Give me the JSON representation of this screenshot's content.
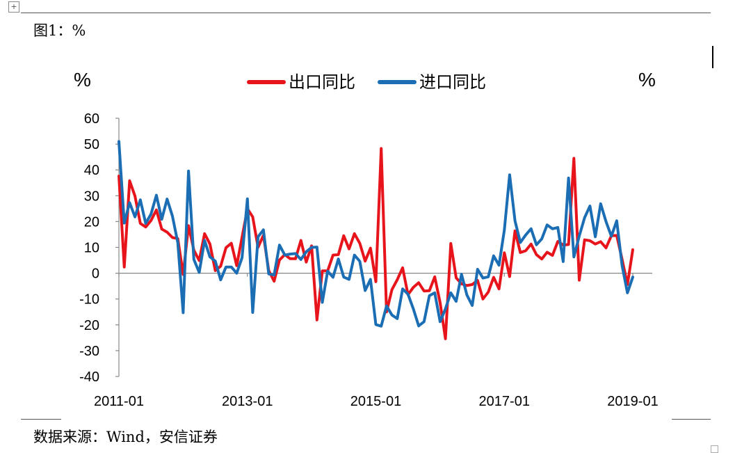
{
  "figure_label": "图1：%",
  "move_handle_glyph": "+",
  "source_note": "数据来源：Wind，安信证券",
  "chart_data": {
    "type": "line",
    "title": "",
    "ylabel_left": "%",
    "ylabel_right": "%",
    "ylim": [
      -40,
      60
    ],
    "yticks": [
      60,
      50,
      40,
      30,
      20,
      10,
      0,
      -10,
      -20,
      -30,
      -40
    ],
    "x_tick_labels": [
      "2011-01",
      "2013-01",
      "2015-01",
      "2017-01",
      "2019-01"
    ],
    "x_tick_index": [
      0,
      24,
      48,
      72,
      96
    ],
    "x_start": "2011-01",
    "x_end": "2019-02",
    "grid": false,
    "legend_position": "top",
    "series": [
      {
        "name": "出口同比",
        "color": "#e8141b",
        "values": [
          37.6,
          2.4,
          35.8,
          29.9,
          19.3,
          17.9,
          20.4,
          24.5,
          17.1,
          15.9,
          13.8,
          13.4,
          -0.5,
          18.4,
          8.9,
          4.9,
          15.3,
          11.3,
          1.0,
          2.7,
          9.9,
          11.6,
          2.9,
          13.9,
          25.0,
          21.8,
          10.0,
          14.7,
          1.0,
          -3.1,
          5.1,
          7.2,
          5.6,
          5.6,
          12.7,
          4.3,
          10.6,
          -18.1,
          0.9,
          0.9,
          7.0,
          7.2,
          14.5,
          9.4,
          15.3,
          11.6,
          4.7,
          9.7,
          -3.3,
          48.3,
          -15.0,
          -6.4,
          -2.5,
          2.1,
          -8.3,
          -5.5,
          -3.7,
          -6.9,
          -6.8,
          -1.4,
          -11.4,
          -25.4,
          11.5,
          -1.8,
          -4.1,
          -4.8,
          -4.4,
          -2.8,
          -10.0,
          -7.3,
          -1.6,
          -6.1,
          7.9,
          -1.3,
          16.4,
          8.0,
          8.7,
          11.3,
          7.2,
          5.5,
          8.1,
          6.9,
          12.3,
          10.9,
          11.1,
          44.5,
          -2.7,
          12.9,
          12.6,
          11.3,
          12.2,
          9.8,
          14.5,
          14.6,
          5.4,
          -4.4,
          9.1
        ]
      },
      {
        "name": "进口同比",
        "color": "#1b6db4",
        "values": [
          51.0,
          19.4,
          27.3,
          21.8,
          28.4,
          19.3,
          22.9,
          30.2,
          20.9,
          28.7,
          22.1,
          11.8,
          -15.3,
          39.6,
          5.3,
          0.3,
          12.7,
          6.3,
          4.7,
          -2.6,
          2.4,
          2.4,
          0.0,
          6.0,
          28.8,
          -15.2,
          14.1,
          16.8,
          -0.3,
          -0.7,
          10.9,
          7.0,
          7.4,
          7.6,
          5.3,
          8.3,
          10.0,
          10.1,
          -11.3,
          0.8,
          -1.6,
          5.5,
          -1.5,
          -2.4,
          7.0,
          4.6,
          -6.7,
          -2.4,
          -19.9,
          -20.5,
          -12.7,
          -16.2,
          -17.6,
          -6.1,
          -8.1,
          -13.8,
          -20.4,
          -18.8,
          -8.7,
          -7.6,
          -18.8,
          -13.8,
          -7.6,
          -10.9,
          -0.4,
          -8.4,
          -12.5,
          1.5,
          -1.9,
          -1.4,
          6.7,
          3.1,
          16.7,
          38.1,
          20.3,
          11.9,
          14.8,
          17.2,
          11.0,
          13.3,
          18.7,
          17.2,
          17.7,
          4.5,
          36.9,
          6.3,
          14.4,
          21.5,
          26.0,
          14.1,
          26.9,
          20.0,
          14.3,
          20.3,
          3.0,
          -7.6,
          -1.5
        ]
      }
    ]
  }
}
